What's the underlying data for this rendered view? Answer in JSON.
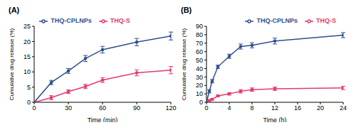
{
  "chart_data": [
    {
      "type": "line",
      "title": "(A)",
      "x_label": "Time (min)",
      "y_label": "Cumulative drug release (%)",
      "x": [
        0,
        15,
        30,
        45,
        60,
        90,
        120
      ],
      "series": [
        {
          "name": "THQ-S",
          "color": "#e5396b",
          "marker": "circle",
          "values": [
            0,
            1.5,
            3.5,
            5.2,
            7.3,
            9.7,
            10.6
          ],
          "errors": [
            0,
            0.7,
            0.6,
            0.7,
            0.8,
            1.0,
            1.2
          ]
        },
        {
          "name": "THQ-CPLNPs",
          "color": "#2f4f8f",
          "marker": "circle",
          "values": [
            0,
            6.5,
            10.3,
            14.4,
            17.3,
            19.8,
            21.8
          ],
          "errors": [
            0,
            0.7,
            0.8,
            1.0,
            1.1,
            1.2,
            1.3
          ]
        }
      ],
      "xlim": [
        0,
        120
      ],
      "xticks": [
        0,
        30,
        60,
        90,
        120
      ],
      "ylim": [
        0,
        25
      ],
      "yticks": [
        0,
        5,
        10,
        15,
        20,
        25
      ],
      "legend": "upper center",
      "grid": false
    },
    {
      "type": "line",
      "title": "(B)",
      "x_label": "Time (h)",
      "y_label": "Cumulative drug release (%)",
      "x": [
        0,
        0.5,
        1,
        2,
        4,
        6,
        8,
        12,
        24
      ],
      "series": [
        {
          "name": "THQ-S",
          "color": "#e5396b",
          "marker": "circle",
          "values": [
            0,
            2,
            3.5,
            7.5,
            10,
            13,
            15,
            16,
            17
          ],
          "errors": [
            0,
            1,
            1,
            1,
            1.5,
            2,
            2,
            2,
            2
          ]
        },
        {
          "name": "THQ-CPLNPs",
          "color": "#2f4f8f",
          "marker": "circle",
          "values": [
            0,
            13,
            25,
            42,
            54.5,
            66,
            67.5,
            72.5,
            79.5
          ],
          "errors": [
            0,
            2,
            2,
            2,
            2.5,
            3,
            3,
            3.5,
            3
          ]
        }
      ],
      "xlim": [
        0,
        24
      ],
      "xticks": [
        0,
        4,
        8,
        12,
        16,
        20,
        24
      ],
      "ylim": [
        0,
        90
      ],
      "yticks": [
        0,
        10,
        20,
        30,
        40,
        50,
        60,
        70,
        80,
        90
      ],
      "legend": "upper right",
      "grid": false
    }
  ]
}
